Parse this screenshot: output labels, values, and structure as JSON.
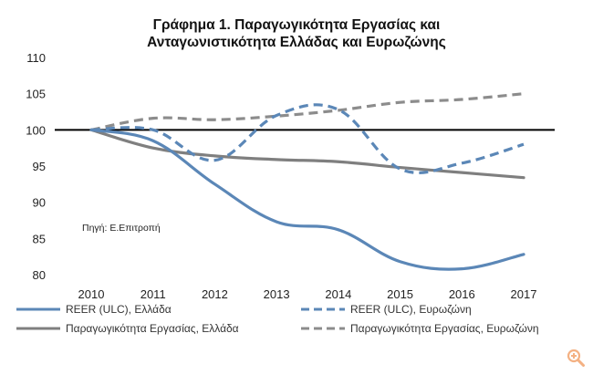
{
  "chart_data": {
    "type": "line",
    "title_lines": [
      "Γράφημα 1. Παραγωγικότητα Εργασίας και",
      "Ανταγωνιστικότητα Ελλάδας και Ευρωζώνης"
    ],
    "x": [
      "2010",
      "2011",
      "2012",
      "2013",
      "2014",
      "2015",
      "2016",
      "2017"
    ],
    "ylim": [
      80,
      110
    ],
    "yticks": [
      "80",
      "85",
      "90",
      "95",
      "100",
      "105",
      "110"
    ],
    "reference_line": 100,
    "grid": false,
    "legend_position": "bottom",
    "source_note": "Πηγή: Ε.Επιτροπή",
    "series": [
      {
        "name": "REER (ULC), Ελλάδα",
        "color": "#5b87b7",
        "dash": "solid",
        "values": [
          100.0,
          98.5,
          92.5,
          87.3,
          86.2,
          81.8,
          80.8,
          82.8
        ]
      },
      {
        "name": "REER (ULC), Ευρωζώνη",
        "color": "#5b87b7",
        "dash": "dashed",
        "values": [
          100.0,
          100.0,
          95.8,
          102.0,
          102.8,
          94.6,
          95.4,
          98.0
        ]
      },
      {
        "name": "Παραγωγικότητα Εργασίας, Ελλάδα",
        "color": "#7f7f7f",
        "dash": "solid",
        "values": [
          100.0,
          97.5,
          96.4,
          95.9,
          95.6,
          94.8,
          94.1,
          93.4
        ]
      },
      {
        "name": "Παραγωγικότητα Εργασίας, Ευρωζώνη",
        "color": "#8c8c8c",
        "dash": "dashed",
        "values": [
          100.0,
          101.6,
          101.4,
          101.9,
          102.7,
          103.8,
          104.2,
          105.0
        ]
      }
    ]
  },
  "icons": {
    "zoom": "zoom-in-icon",
    "zoom_color": "#f4b183"
  }
}
